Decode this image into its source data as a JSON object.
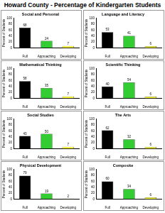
{
  "title": "Howard County - Percentage of Kindergarten Students",
  "chart_data": [
    {
      "type": "bar",
      "title": "Social and Personal",
      "y_label": "Percent of Students",
      "categories": [
        "Full",
        "Approaching",
        "Developing"
      ],
      "values": [
        68,
        24,
        7
      ],
      "colors": [
        "#000000",
        "#33cc33",
        "#ffff33"
      ],
      "ylim": [
        0,
        100
      ],
      "yticks": [
        0,
        20,
        40,
        60,
        80,
        100
      ],
      "data_labels": true,
      "grid": false
    },
    {
      "type": "bar",
      "title": "Language and Literacy",
      "y_label": "Percent of Students",
      "categories": [
        "Full",
        "Approaching",
        "Developing"
      ],
      "values": [
        53,
        41,
        6
      ],
      "colors": [
        "#000000",
        "#33cc33",
        "#ffff33"
      ],
      "ylim": [
        0,
        100
      ],
      "yticks": [
        0,
        20,
        40,
        60,
        80,
        100
      ],
      "data_labels": true,
      "grid": false
    },
    {
      "type": "bar",
      "title": "Mathematical Thinking",
      "y_label": "Percent of Students",
      "categories": [
        "Full",
        "Approaching",
        "Developing"
      ],
      "values": [
        58,
        35,
        7
      ],
      "colors": [
        "#000000",
        "#33cc33",
        "#ffff33"
      ],
      "ylim": [
        0,
        100
      ],
      "yticks": [
        0,
        20,
        40,
        60,
        80,
        100
      ],
      "data_labels": true,
      "grid": false
    },
    {
      "type": "bar",
      "title": "Scientific Thinking",
      "y_label": "Percent of Students",
      "categories": [
        "Full",
        "Approaching",
        "Developing"
      ],
      "values": [
        40,
        54,
        6
      ],
      "colors": [
        "#000000",
        "#33cc33",
        "#ffff33"
      ],
      "ylim": [
        0,
        100
      ],
      "yticks": [
        0,
        20,
        40,
        60,
        80,
        100
      ],
      "data_labels": true,
      "grid": false
    },
    {
      "type": "bar",
      "title": "Social Studies",
      "y_label": "Percent of Students",
      "categories": [
        "Full",
        "Approaching",
        "Developing"
      ],
      "values": [
        43,
        50,
        7
      ],
      "colors": [
        "#000000",
        "#33cc33",
        "#ffff33"
      ],
      "ylim": [
        0,
        100
      ],
      "yticks": [
        0,
        20,
        40,
        60,
        80,
        100
      ],
      "data_labels": true,
      "grid": false
    },
    {
      "type": "bar",
      "title": "The Arts",
      "y_label": "Percent of Students",
      "categories": [
        "Full",
        "Approaching",
        "Developing"
      ],
      "values": [
        62,
        32,
        6
      ],
      "colors": [
        "#000000",
        "#33cc33",
        "#ffff33"
      ],
      "ylim": [
        0,
        100
      ],
      "yticks": [
        0,
        20,
        40,
        60,
        80,
        100
      ],
      "data_labels": true,
      "grid": false
    },
    {
      "type": "bar",
      "title": "Physical Development",
      "y_label": "Percent of Students",
      "categories": [
        "Full",
        "Approaching",
        "Developing"
      ],
      "values": [
        79,
        19,
        2
      ],
      "colors": [
        "#000000",
        "#33cc33",
        "#ffff33"
      ],
      "ylim": [
        0,
        100
      ],
      "yticks": [
        0,
        20,
        40,
        60,
        80,
        100
      ],
      "data_labels": true,
      "grid": false
    },
    {
      "type": "bar",
      "title": "Composite",
      "y_label": "Percent of Students",
      "categories": [
        "Full",
        "Approaching",
        "Developing"
      ],
      "values": [
        60,
        34,
        6
      ],
      "colors": [
        "#000000",
        "#33cc33",
        "#ffff33"
      ],
      "ylim": [
        0,
        100
      ],
      "yticks": [
        0,
        20,
        40,
        60,
        80,
        100
      ],
      "data_labels": true,
      "grid": false
    }
  ]
}
